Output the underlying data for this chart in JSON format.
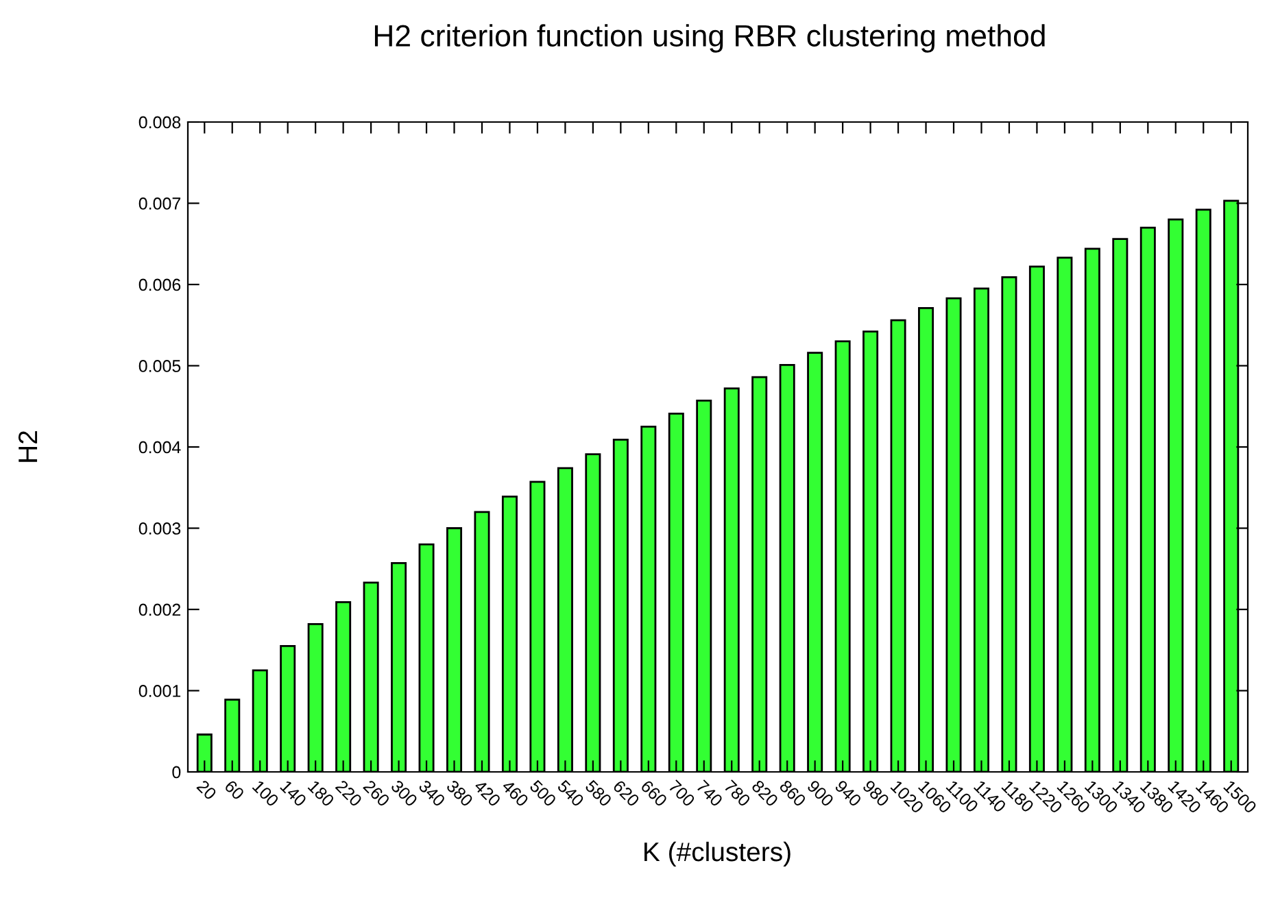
{
  "chart_data": {
    "type": "bar",
    "title": "H2 criterion function using RBR clustering method",
    "xlabel": "K (#clusters)",
    "ylabel": "H2",
    "categories": [
      "20",
      "60",
      "100",
      "140",
      "180",
      "220",
      "260",
      "300",
      "340",
      "380",
      "420",
      "460",
      "500",
      "540",
      "580",
      "620",
      "660",
      "700",
      "740",
      "780",
      "820",
      "860",
      "900",
      "940",
      "980",
      "1020",
      "1060",
      "1100",
      "1140",
      "1180",
      "1220",
      "1260",
      "1300",
      "1340",
      "1380",
      "1420",
      "1460",
      "1500"
    ],
    "values": [
      0.00046,
      0.00089,
      0.00125,
      0.00155,
      0.00182,
      0.00209,
      0.00233,
      0.00257,
      0.0028,
      0.003,
      0.0032,
      0.00339,
      0.00357,
      0.00374,
      0.00391,
      0.00409,
      0.00425,
      0.00441,
      0.00457,
      0.00472,
      0.00486,
      0.00501,
      0.00516,
      0.0053,
      0.00542,
      0.00556,
      0.00571,
      0.00583,
      0.00595,
      0.00609,
      0.00622,
      0.00633,
      0.00644,
      0.00656,
      0.0067,
      0.0068,
      0.00692,
      0.00703
    ],
    "color": "#33ff33",
    "ylim": [
      0,
      0.008
    ],
    "yticks": [
      0,
      0.001,
      0.002,
      0.003,
      0.004,
      0.005,
      0.006,
      0.007,
      0.008
    ],
    "grid": false
  }
}
